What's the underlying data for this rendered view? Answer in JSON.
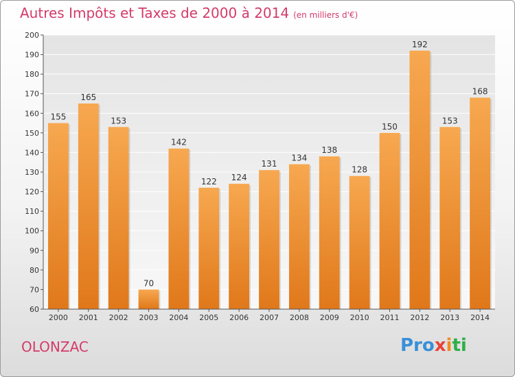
{
  "header": {
    "title": "Autres Impôts et Taxes de 2000 à 2014",
    "subtitle": "(en milliers d'€)"
  },
  "footer": {
    "place": "OLONZAC",
    "logo": [
      "Pro",
      "x",
      "i",
      "ti"
    ]
  },
  "colors": {
    "accent": "#d43a6a",
    "bar_top": "#f7a850",
    "bar_bottom": "#e0781a"
  },
  "chart_data": {
    "type": "bar",
    "title": "Autres Impôts et Taxes de 2000 à 2014",
    "subtitle": "(en milliers d'€)",
    "categories": [
      "2000",
      "2001",
      "2002",
      "2003",
      "2004",
      "2005",
      "2006",
      "2007",
      "2008",
      "2009",
      "2010",
      "2011",
      "2012",
      "2013",
      "2014"
    ],
    "values": [
      155,
      165,
      153,
      70,
      142,
      122,
      124,
      131,
      134,
      138,
      128,
      150,
      192,
      153,
      168
    ],
    "ylim": [
      60,
      200
    ],
    "yticks": [
      60,
      70,
      80,
      90,
      100,
      110,
      120,
      130,
      140,
      150,
      160,
      170,
      180,
      190,
      200
    ],
    "grid": true,
    "legend": "none",
    "xlabel": "",
    "ylabel": ""
  }
}
